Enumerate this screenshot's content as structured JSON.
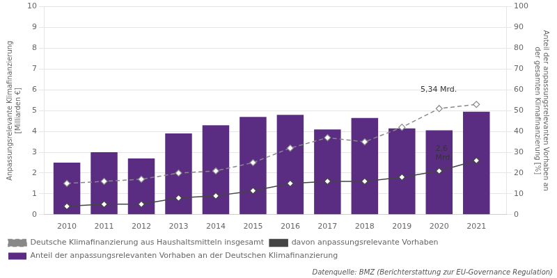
{
  "chart_data": {
    "type": "bar",
    "x": [
      2010,
      2011,
      2012,
      2013,
      2014,
      2015,
      2016,
      2017,
      2018,
      2019,
      2020,
      2021
    ],
    "xlim": [
      2009.4,
      2021.8
    ],
    "xticks": [
      2010,
      2011,
      2012,
      2013,
      2014,
      2015,
      2016,
      2017,
      2018,
      2019,
      2020,
      2021
    ],
    "y_label": "Anpassungsrelevante Klimafinanzierung\n[Milliarden €]",
    "y2_label": "Anteil der anpassungsrelevanten Vorhaben an\nder gesamten Klimafinanzierung [%]",
    "ylim": [
      0,
      10
    ],
    "yticks": [
      0,
      1,
      2,
      3,
      4,
      5,
      6,
      7,
      8,
      9,
      10
    ],
    "y2lim": [
      0,
      100
    ],
    "y2ticks": [
      0,
      10,
      20,
      30,
      40,
      50,
      60,
      70,
      80,
      90,
      100
    ],
    "grid": true,
    "legend": "bottom left",
    "series": [
      {
        "name": "Anteil der anpassungsrelevanten Vorhaben an der Deutschen Klimafinanzierung",
        "type": "bar",
        "color": "#5b2d82",
        "values": [
          2.5,
          3.0,
          2.7,
          3.9,
          4.3,
          4.7,
          4.8,
          4.1,
          4.65,
          4.15,
          4.05,
          4.95
        ]
      },
      {
        "name": "Deutsche Klimafinanzierung aus Haushaltsmitteln insgesamt",
        "type": "line",
        "axis": "y2",
        "color": "#888888",
        "marker": "diamond",
        "line_style": "dashed",
        "values": [
          15,
          16,
          17,
          20,
          21,
          25,
          32,
          37,
          35,
          42,
          51,
          53
        ]
      },
      {
        "name": "davon anpassungsrelevante Vorhaben",
        "type": "line",
        "color": "#444444",
        "marker": "diamond",
        "line_style": "solid",
        "values": [
          0.4,
          0.5,
          0.5,
          0.8,
          0.9,
          1.15,
          1.5,
          1.6,
          1.6,
          1.8,
          2.1,
          2.6
        ]
      }
    ],
    "annotations": [
      {
        "text": "5,34 Mrd.",
        "x": 2019.5,
        "y": 60,
        "axis": "y2"
      },
      {
        "text": "2,6\nMrd.",
        "x": 2019.9,
        "y": 2.95,
        "axis": "y"
      },
      {
        "text": "Datenquelle: BMZ (Berichterstattung zur EU-Governance Regulation)"
      }
    ]
  }
}
